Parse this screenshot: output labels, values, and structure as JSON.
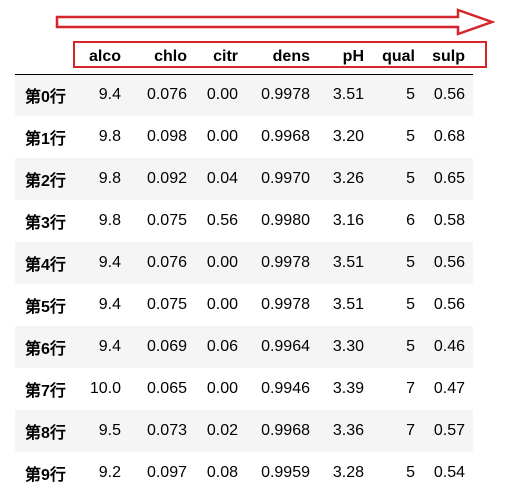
{
  "annotation": {
    "arrow_color": "#d6252b",
    "box_color": "#d6252b"
  },
  "table": {
    "columns": [
      "alco",
      "chlo",
      "citr",
      "dens",
      "pH",
      "qual",
      "sulp"
    ],
    "rows": [
      {
        "index": "第0行",
        "values": [
          "9.4",
          "0.076",
          "0.00",
          "0.9978",
          "3.51",
          "5",
          "0.56"
        ]
      },
      {
        "index": "第1行",
        "values": [
          "9.8",
          "0.098",
          "0.00",
          "0.9968",
          "3.20",
          "5",
          "0.68"
        ]
      },
      {
        "index": "第2行",
        "values": [
          "9.8",
          "0.092",
          "0.04",
          "0.9970",
          "3.26",
          "5",
          "0.65"
        ]
      },
      {
        "index": "第3行",
        "values": [
          "9.8",
          "0.075",
          "0.56",
          "0.9980",
          "3.16",
          "6",
          "0.58"
        ]
      },
      {
        "index": "第4行",
        "values": [
          "9.4",
          "0.076",
          "0.00",
          "0.9978",
          "3.51",
          "5",
          "0.56"
        ]
      },
      {
        "index": "第5行",
        "values": [
          "9.4",
          "0.075",
          "0.00",
          "0.9978",
          "3.51",
          "5",
          "0.56"
        ]
      },
      {
        "index": "第6行",
        "values": [
          "9.4",
          "0.069",
          "0.06",
          "0.9964",
          "3.30",
          "5",
          "0.46"
        ]
      },
      {
        "index": "第7行",
        "values": [
          "10.0",
          "0.065",
          "0.00",
          "0.9946",
          "3.39",
          "7",
          "0.47"
        ]
      },
      {
        "index": "第8行",
        "values": [
          "9.5",
          "0.073",
          "0.02",
          "0.9968",
          "3.36",
          "7",
          "0.57"
        ]
      },
      {
        "index": "第9行",
        "values": [
          "9.2",
          "0.097",
          "0.08",
          "0.9959",
          "3.28",
          "5",
          "0.54"
        ]
      }
    ]
  }
}
